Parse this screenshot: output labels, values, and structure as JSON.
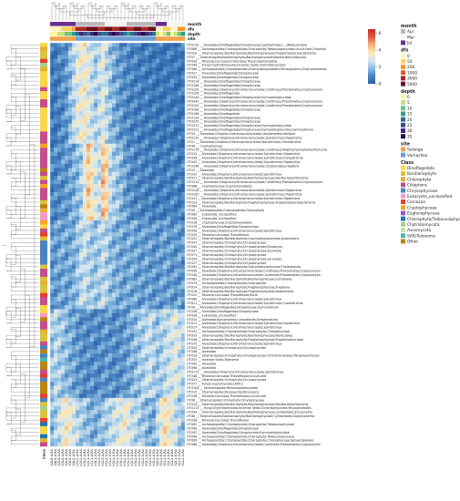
{
  "chart_data": {
    "type": "heatmap",
    "title": "",
    "xlabel": "",
    "ylabel": "",
    "colorbar": {
      "ticks": [
        6,
        4,
        2,
        0
      ],
      "range": [
        0,
        6.5
      ],
      "stops": [
        "#2c62a8",
        "#4a85c2",
        "#8dbde0",
        "#d7e8f2",
        "#fbe8b4",
        "#f5b47a",
        "#e2583f",
        "#c5282b"
      ]
    },
    "annotation_rows": [
      "month",
      "dfs",
      "depth",
      "site"
    ],
    "columns": [
      "S2L8-4-RA",
      "S4L5-4-RA",
      "S2L6-4-RA",
      "S3L5-4-RA",
      "S2L6-4-RA",
      "S3L5-4-RA",
      "S4L2-4-RA",
      "V1L2-4-RA",
      "V2L2-4-RA",
      "V3L2-4-RA",
      "V2L1-4-RA",
      "V1L1-4-RA",
      "V3L1-4-RA",
      "V1L3-4-RA",
      "V2L3-4-RA",
      "V1L3-5-RA",
      "V1L2-5-RA",
      "V2L1-5-RA",
      "V1L1-5-RA",
      "V3L3-5-RA",
      "V3L2-5-RA",
      "V1L3-6-RA",
      "V2L3-6-RA",
      "V3L2-6-RA",
      "V1L2-6-RA",
      "V2L2-6-RA",
      "V3L1-6-RA",
      "V1L1-6-RA",
      "V2L1-6-RA",
      "S2L3-6-RA",
      "S1L3-6-RA",
      "S1L2-6-RA",
      "S1L1-6-RA",
      "S2L2-6-RA",
      "S2L1-6-RA",
      "S1L3-5-RA",
      "S1L2-5-RA"
    ],
    "rows": [
      "OTU110 __ Alveolata;Dinoflagellata;Dinophyceae;Lophodiniales;...;Woloszynskia",
      "OTU68 __ Archaeplastida;Chloroplastida;Chlorophyta;Trebouxiophyceae;uncultured Chlorella",
      "OTU20 __ Stramenopiles;Bacillariophyta;Bacillariophyceae;Fragilariophyceae;Diatoma",
      "OTU7 __ Stramenopiles;Bacillariophyta;Bacillariophyceae;Bacillariales;Nitzschia",
      "OTU30 __ Rhizaria;Cercozoa;Imbricatea;Thaumatomonadida",
      "OTU49 __ Fungi;Chytridiomycota;Incertae Sedis;Chytridiomycetes",
      "OTU80 __ Archaeplastida;Chloroplastida;Chlamydomonadales;Tetrasporales;Chlamydomonas",
      "OTU27 __ Alveolata;Dinoflagellata;Dinophyceae",
      "OTU52 __ Alveolata;Dinoflagellata;Dinophyceae",
      "OTU214 __ Alveolata;Dinoflagellata;Dinophyceae",
      "OTU106 __ Alveolata;Dinoflagellata;Dinophyceae",
      "OTU120 __ Alveolata;Ciliophora;Intramacronucleata;Conthreep;Prostomatea;Cryptocaryon",
      "OTU156 __ Alveolata;Dinoflagellata",
      "OTU144 __ Alveolata;Dinoflagellata;Dinophyceae;Gymnodiniphycidae",
      "OTU342 __ Alveolata;Ciliophora;Intramacronucleata;Conthreep;Prostomatea;Cryptocaryon",
      "OTU155 __ Alveolata;Ciliophora;Intramacronucleata;Conthreep;Prostomatea;Cryptocaryon",
      "OTU108 __ Alveolata;Dinoflagellata;Dinophyceae",
      "OTU196 __ Alveolata;Dinoflagellata",
      "OTU154 __ Alveolata;Dinoflagellata;Dinophyceae",
      "OTU235 __ Alveolata;Dinoflagellata;Dinophyceae",
      "OTU231 __ Alveolata;Dinoflagellata;Dinophyceae;Gymnodiniphycidae",
      "OTU121 __ Alveolata;Dinoflagellata;Dinophyceae;Gymnodiniphycidae;Gymnodinium",
      "OTU4 __ Alveolata;Ciliophora;Intramacronucleata;Litostomatea;Haptoria",
      "OTU132 __ Alveolata;Ciliophora;Intramacronucleata;Spirotrichea;Oligotrichia",
      "OTU1 __ Alveolata;Ciliophora;Intramacronucleata;Spirotrichea;Choreotrichia",
      "OTU6 __ Cryptophyceae",
      "OTU119 __ Alveolata;Ciliophora;Intramacronucleata;Conthreep;Oligohymenophorea;Peniculia",
      "OTU12 __ Alveolata;Ciliophora;Intramacronucleata;Spirotrichea;Oligotrichia",
      "OTU38 __ Alveolata;Ciliophora;Intramacronucleata;Spirotrichea;Choreotrichia",
      "OTU42 __ Alveolata;Ciliophora;Intramacronucleata;Spirotrichea;Oligotrichia",
      "OTU148 __ Alveolata;Ciliophora;Intramacronucleata;Litostomatea;Haptoria",
      "OTU3 __ Alveolata",
      "OTU15 __ Alveolata;Ciliophora;Intramacronucleata;Spirotrichea",
      "OTU17 __ Stramenopiles;Bacillariophyta;Bacillariophyceae;Bacillariales;Nitzschia",
      "OTU112 __ Alveolata;Ciliophora;Intramacronucleata;Conthreep;Prostomatea;Cryptocaryon",
      "OTU66 __ Cryptophyceae;Cryptomonadales",
      "OTU128 __ Alveolata;Ciliophora;Intramacronucleata;Spirotrichea;Oligotrichia",
      "OTU102 __ Alveolata;Ciliophora;Intramacronucleata;Spirotrichea;Oligotrichia",
      "OTU41 __ Alveolata;Ciliophora;Intramacronucleata;Spirotrichea;Oligotrichia",
      "OTU13 __ Stramenopiles;Bacillariophyta;Fragilariophyceae;Fragilariophycidae;Ulnaria",
      "OTU84 __ Alveolata",
      "OTU5 __ Archaeplastida;Chloroplastida;Chlorophyta",
      "OTU62 __ Eukaryota_unclassified",
      "OTU58 __ Eukaryota_unclassified",
      "OTU18 __ Cryptophyceae;Cryptomonadales",
      "OTU79 __ Alveolata;Dinoflagellata;Dinophyceae",
      "OTU59 __ Alveolata;Ciliophora;Intramacronucleata;Spirotrichea",
      "OTU29 __ Rhizaria;Cercozoa;Thecofilosea",
      "OTU25 __ Stramenopiles;Bacillariophyta;Coscinodiscophyceae;Aulacoseira",
      "OTU47 __ Stramenopiles;Ochrophyta;Chrysophyceae",
      "OTU45 __ Stramenopiles;Ochrophyta;Chrysophyceae;Dinobryon",
      "OTU37 __ Stramenopiles;Ochrophyta;Chrysophyceae;Spumella",
      "OTU71 __ Stramenopiles;Ochrophyta;Chrysophyceae",
      "OTU54 __ Stramenopiles;Ochrophyta;Chrysophyceae;Synurales",
      "OTU27 __ Stramenopiles;Ochrophyta;Chrysophyceae",
      "OTU93 __ Stramenopiles;Bacillariophyta;Coscinodiscophyceae;Thalassiosira",
      "OTU50 __ Alveolata;Ciliophora;Intramacronucleata;Conthreep;Prostomatea;Cryptocaryon",
      "OTU40 __ Alveolata;Ciliophora;Intramacronucleata;Conthreep;Prostomatea;Cryptocaryon",
      "OTU83 __ Stramenopiles;Bacillariophyta;Bacillariophyceae;Surirellales",
      "OTU74 __ Archaeplastida;Chloroplastida;Chlorophyta",
      "OTU24 __ Stramenopiles;Bacillariophyta;Fragilariophyceae;Fragilaria",
      "OTU16 __ Stramenopiles;Bacillariophyta;Fragilariophyceae;Asterionella",
      "OTU12 __ Rhizaria;Cercozoa;Thecofilosea;Ebria",
      "OTU60 __ Alveolata;Ciliophora;Intramacronucleata;Spirotrichea",
      "OTU21 __ Alveolata;Ciliophora;Intramacronucleata;Spirotrichea;Choreotrichia",
      "OTU9 __ Alveolata;Dinoflagellata;Dinophyceae;Gymnodinium",
      "OTU28 __ Alveolata;Dinoflagellata;Dinophyceae",
      "OTU26 __ Eukaryota_unclassified",
      "OTU14 __ Alveolata;Apicomplexa;Conoidasida;Gregarinasina",
      "OTU11 __ Alveolata;Ciliophora;Intramacronucleata;Spirotrichea;Hypotrichia",
      "OTU17 __ Alveolata;Ciliophora;Intramacronucleata;Spirotrichea",
      "OTU31 __ Archaeplastida;Chloroplastida;Chlorophyta;Chlorophyceae",
      "OTU33 __ Stramenopiles;Bacillariophyta;Bacillariophyceae;Naviculales",
      "OTU48 __ Stramenopiles;Bacillariophyta;Fragilariophyceae;Fragilariophycidae",
      "OTU75 __ Alveolata;Ciliophora;Intramacronucleata;Spirotrichea",
      "OTU43 __ Stramenopiles;Ochrophyta;Chrysophyceae",
      "OTU46 __ Alveolata",
      "OTU19 __ Stramenopiles;Ochrophyta;Chrysophyceae;Ochromonadales;Paraphysomonas",
      "OTU53 __ Incertae Sedis;Telonema",
      "OTU95 __ Alveolata",
      "OTU96 __ Alveolata",
      "OTU173 __ Alveolata;Ciliophora;Intramacronucleata;Spirotrichea",
      "OTU46 __ Rhizaria;Cercozoa;Thecofilosea;uncultured",
      "OTU23 __ Stramenopiles;Ochrophyta;Chrysophyceae",
      "OTU77 __ Fungi;Cryptomycota;LKM11",
      "OTU104 __ Stramenopiles;Peronosporomycetes",
      "OTU15 __ Stramenopiles;Bicosoecida;Bicosoeca",
      "OTU38 __ Rhizaria;Cercozoa;Thecofilosea;uncultured",
      "OTU6 __ Stramenopiles;Ochrophyta;Chrysophyceae",
      "OTU10 __ Stramenopiles;Bacillariophyta;Bacillariophyceae;Bacillariales;Nitzschia",
      "OTU113 __ Fungi;Chytridiomycota;Incertae Sedis;Chytridiomycetes;Rhizophydiales",
      "OTU94 __ Stramenopiles;Bacillariophyta;Bacillariophyceae;Cymbellales;Encyonema",
      "OTU8 __ Stramenopiles;Bacillariophyta;Bacillariophyceae;Cymbellales;Gomphonema",
      "OTU26 __ Rhizaria;Cercozoa;Thecofilosea",
      "OTU82 __ Archaeplastida;Chloroplastida;Chlorophyta;Trebouxiophyceae",
      "OTU90 __ Alveolata;Dinoflagellata;Dinophyceae",
      "OTU97 __ Alveolata;Dinoflagellata;Dinophyceae;Gymnodiniphycidae",
      "OTU98 __ Archaeplastida;Chloroplastida;Chlorophyta;Trebouxiophyceae",
      "OTU89 __ Archaeplastida;Chloroplastida;Chlorophyta;Chlorophyceae;Sphaeropleales",
      "OTU88 __ Alveolata;Ciliophora;Intramacronucleata;Conthreep;Prostomatea;Cryptocaryon"
    ],
    "rows_top_class": [
      "Dinoflagellata",
      "Chlorophyta",
      "Bacillariophyta",
      "Bacillariophyta",
      "Cercozoa",
      "Chytridiomycota",
      "Chlorophyta",
      "Dinoflagellata",
      "Dinoflagellata",
      "Dinoflagellata",
      "Dinoflagellata",
      "Ciliophora",
      "Dinoflagellata",
      "Dinoflagellata",
      "Ciliophora",
      "Ciliophora",
      "Dinoflagellata",
      "Dinoflagellata",
      "Dinoflagellata",
      "Dinoflagellata",
      "Dinoflagellata",
      "Dinoflagellata",
      "Ciliophora",
      "Ciliophora",
      "Ciliophora",
      "Cryptophyceae",
      "Ciliophora",
      "Ciliophora",
      "Ciliophora",
      "Ciliophora",
      "Ciliophora",
      "Other",
      "Ciliophora",
      "Bacillariophyta",
      "Ciliophora",
      "Cryptophyceae",
      "Ciliophora",
      "Ciliophora",
      "Ciliophora",
      "Bacillariophyta",
      "Other",
      "Chlorophyta",
      "Eukaryota_unclassified",
      "Eukaryota_unclassified",
      "Cryptophyceae",
      "Dinoflagellata",
      "Ciliophora",
      "Cercozoa",
      "Bacillariophyta",
      "Chrysophyceae",
      "Chrysophyceae",
      "Chrysophyceae",
      "Chrysophyceae",
      "Chrysophyceae",
      "Chrysophyceae",
      "Bacillariophyta",
      "Ciliophora",
      "Ciliophora",
      "Bacillariophyta",
      "Chlorophyta",
      "Bacillariophyta",
      "Bacillariophyta",
      "Cercozoa",
      "Ciliophora",
      "Ciliophora",
      "Dinoflagellata",
      "Dinoflagellata",
      "Eukaryota_unclassified",
      "Other",
      "Ciliophora",
      "Ciliophora",
      "Chlorophyta",
      "Bacillariophyta",
      "Bacillariophyta",
      "Ciliophora",
      "Chrysophyceae",
      "Other",
      "Chrysophyceae",
      "SAR/Telonema",
      "Other",
      "Other",
      "Ciliophora",
      "Cercozoa",
      "Chrysophyceae",
      "Other",
      "Other",
      "Other",
      "Cercozoa",
      "Chrysophyceae",
      "Bacillariophyta",
      "Chytridiomycota",
      "Bacillariophyta",
      "Bacillariophyta",
      "Cercozoa",
      "Chlorophyta/Trebouxiophyceae",
      "Dinoflagellata",
      "Dinoflagellata",
      "Chlorophyta/Trebouxiophyceae",
      "Chlorophyta",
      "Ciliophora"
    ],
    "annotations": {
      "month": [
        "Jul",
        "Jul",
        "Jul",
        "Jul",
        "Jul",
        "Jul",
        "Jul",
        "Apr",
        "Apr",
        "Apr",
        "Apr",
        "Apr",
        "Apr",
        "Apr",
        "Apr",
        "Mar",
        "Mar",
        "Mar",
        "Mar",
        "Mar",
        "Mar",
        "Apr",
        "Apr",
        "Apr",
        "Apr",
        "Apr",
        "Apr",
        "Apr",
        "Apr",
        "Jul",
        "Jul",
        "Jul",
        "Mar",
        "Mar",
        "Mar",
        "Mar",
        "Mar"
      ],
      "dfs": [
        0,
        0,
        0,
        50,
        50,
        50,
        200,
        3000,
        3000,
        3000,
        5000,
        5000,
        5000,
        3000,
        3000,
        5000,
        5000,
        3000,
        3000,
        5000,
        5000,
        3000,
        3000,
        5000,
        5000,
        3000,
        3000,
        5000,
        5000,
        0,
        0,
        50,
        50,
        0,
        0,
        200,
        200
      ],
      "depth": [
        0,
        0,
        5,
        5,
        10,
        10,
        15,
        20,
        30,
        25,
        20,
        30,
        35,
        25,
        20,
        20,
        30,
        35,
        30,
        25,
        20,
        15,
        20,
        25,
        30,
        35,
        30,
        25,
        20,
        5,
        0,
        5,
        10,
        0,
        5,
        10,
        15
      ],
      "site": [
        "Selenga",
        "Selenga",
        "Selenga",
        "Selenga",
        "Selenga",
        "Selenga",
        "Selenga",
        "Varnachka",
        "Varnachka",
        "Varnachka",
        "Varnachka",
        "Varnachka",
        "Varnachka",
        "Varnachka",
        "Varnachka",
        "Varnachka",
        "Varnachka",
        "Varnachka",
        "Varnachka",
        "Varnachka",
        "Varnachka",
        "Varnachka",
        "Varnachka",
        "Varnachka",
        "Varnachka",
        "Varnachka",
        "Varnachka",
        "Varnachka",
        "Varnachka",
        "Selenga",
        "Selenga",
        "Selenga",
        "Selenga",
        "Selenga",
        "Selenga",
        "Selenga",
        "Selenga"
      ]
    },
    "row_group_values": [
      [
        0.5,
        0.6,
        0.8,
        1.0,
        1.2,
        1.8,
        2.4,
        3.0,
        3.2,
        3.4,
        3.0,
        2.6,
        2.2,
        2.6,
        3.0,
        2.4,
        2.0,
        1.6,
        1.4,
        1.2,
        1.0,
        0.9,
        0.8,
        0.8,
        0.7,
        0.7,
        0.7,
        0.6,
        0.6,
        0.5,
        0.5,
        0.5,
        0.6,
        0.6,
        0.5,
        0.5,
        0.6
      ],
      [
        0.8,
        0.9,
        1.0,
        1.1,
        1.2,
        1.4,
        1.6,
        1.8,
        2.2,
        3.2,
        4.2,
        3.6,
        2.8,
        2.6,
        4.4,
        3.8,
        2.6,
        2.2,
        2.0,
        1.8,
        1.4,
        1.1,
        1.0,
        0.9,
        0.9,
        0.8,
        0.8,
        0.8,
        0.7,
        0.7,
        0.7,
        0.7,
        0.8,
        0.8,
        0.8,
        0.7,
        0.7
      ],
      [
        1.2,
        1.3,
        1.4,
        1.5,
        1.4,
        1.5,
        1.6,
        2.0,
        2.4,
        2.6,
        2.3,
        2.1,
        2.0,
        2.2,
        2.5,
        2.2,
        1.9,
        1.7,
        1.6,
        1.5,
        1.4,
        1.5,
        1.5,
        1.4,
        1.3,
        1.3,
        1.4,
        1.3,
        1.2,
        1.2,
        1.3,
        1.4,
        1.3,
        1.2,
        1.2,
        1.3,
        1.2
      ],
      [
        2.0,
        2.4,
        2.2,
        2.0,
        1.8,
        1.6,
        1.4,
        1.2,
        1.1,
        1.0,
        1.0,
        1.1,
        1.0,
        1.0,
        1.1,
        1.2,
        1.1,
        1.0,
        1.0,
        1.1,
        1.2,
        1.4,
        1.6,
        1.8,
        2.0,
        2.2,
        2.4,
        2.6,
        2.2,
        2.0,
        2.2,
        2.4,
        2.6,
        2.8,
        3.0,
        2.6,
        2.4
      ],
      [
        1.8,
        2.2,
        2.6,
        3.2,
        3.6,
        3.2,
        2.8,
        2.4,
        2.2,
        2.0,
        1.8,
        1.6,
        1.6,
        1.8,
        2.0,
        2.2,
        2.4,
        2.6,
        2.8,
        3.0,
        3.4,
        3.0,
        2.6,
        2.4,
        2.2,
        2.0,
        1.8,
        1.6,
        1.6,
        2.4,
        3.2,
        3.8,
        3.4,
        3.0,
        2.6,
        2.2,
        2.0
      ]
    ],
    "row_group_breaks": [
      25,
      44,
      66,
      88,
      100
    ]
  }
}
